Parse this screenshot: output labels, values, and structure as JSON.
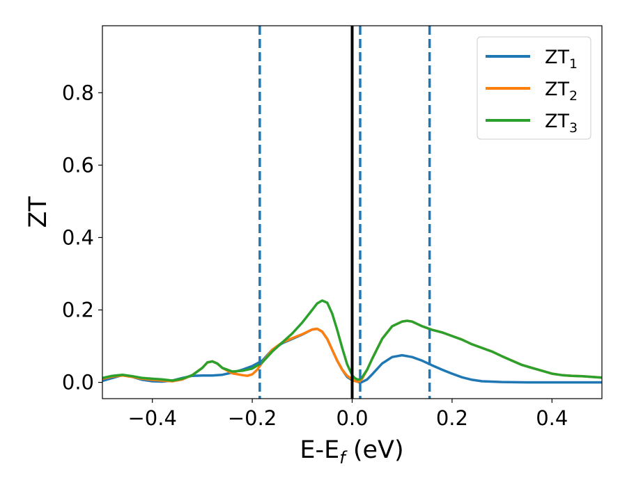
{
  "chart_data": {
    "type": "line",
    "title": "",
    "xlabel_main": "E-E",
    "xlabel_sub": "f",
    "xlabel_tail": " (eV)",
    "ylabel": "ZT",
    "xlim": [
      -0.5,
      0.5
    ],
    "ylim": [
      -0.045,
      0.985
    ],
    "xticks": [
      -0.4,
      -0.2,
      0.0,
      0.2,
      0.4
    ],
    "xtick_labels": [
      "−0.4",
      "−0.2",
      "0.0",
      "0.2",
      "0.4"
    ],
    "yticks": [
      0.0,
      0.2,
      0.4,
      0.6,
      0.8
    ],
    "ytick_labels": [
      "0.0",
      "0.2",
      "0.4",
      "0.6",
      "0.8"
    ],
    "grid": false,
    "legend_position": "top-right",
    "vlines": [
      {
        "x": -0.185,
        "style": "dashed",
        "color": "#1f77b4"
      },
      {
        "x": 0.0,
        "style": "solid",
        "color": "#000000"
      },
      {
        "x": 0.016,
        "style": "dashed",
        "color": "#1f77b4"
      },
      {
        "x": 0.155,
        "style": "dashed",
        "color": "#1f77b4"
      }
    ],
    "series": [
      {
        "name_main": "ZT",
        "name_sub": "1",
        "color": "#1f77b4",
        "points": [
          [
            -0.5,
            0.004
          ],
          [
            -0.48,
            0.012
          ],
          [
            -0.46,
            0.02
          ],
          [
            -0.44,
            0.015
          ],
          [
            -0.42,
            0.007
          ],
          [
            -0.4,
            0.003
          ],
          [
            -0.38,
            0.002
          ],
          [
            -0.36,
            0.005
          ],
          [
            -0.34,
            0.012
          ],
          [
            -0.32,
            0.018
          ],
          [
            -0.3,
            0.019
          ],
          [
            -0.28,
            0.019
          ],
          [
            -0.26,
            0.021
          ],
          [
            -0.24,
            0.027
          ],
          [
            -0.22,
            0.035
          ],
          [
            -0.2,
            0.045
          ],
          [
            -0.18,
            0.06
          ],
          [
            -0.16,
            0.09
          ],
          [
            -0.14,
            0.108
          ],
          [
            -0.12,
            0.12
          ],
          [
            -0.1,
            0.132
          ],
          [
            -0.08,
            0.146
          ],
          [
            -0.07,
            0.148
          ],
          [
            -0.06,
            0.14
          ],
          [
            -0.05,
            0.12
          ],
          [
            -0.04,
            0.09
          ],
          [
            -0.03,
            0.06
          ],
          [
            -0.02,
            0.035
          ],
          [
            -0.01,
            0.015
          ],
          [
            0.0,
            0.006
          ],
          [
            0.01,
            0.002
          ],
          [
            0.015,
            0.0
          ],
          [
            0.02,
            0.001
          ],
          [
            0.03,
            0.008
          ],
          [
            0.04,
            0.022
          ],
          [
            0.06,
            0.052
          ],
          [
            0.08,
            0.07
          ],
          [
            0.1,
            0.075
          ],
          [
            0.12,
            0.07
          ],
          [
            0.14,
            0.06
          ],
          [
            0.16,
            0.047
          ],
          [
            0.18,
            0.035
          ],
          [
            0.2,
            0.024
          ],
          [
            0.22,
            0.014
          ],
          [
            0.24,
            0.007
          ],
          [
            0.26,
            0.003
          ],
          [
            0.3,
            0.001
          ],
          [
            0.35,
            0.0
          ],
          [
            0.4,
            0.0
          ],
          [
            0.45,
            0.0
          ],
          [
            0.5,
            0.0
          ]
        ]
      },
      {
        "name_main": "ZT",
        "name_sub": "2",
        "color": "#ff7f0e",
        "points": [
          [
            -0.5,
            0.01
          ],
          [
            -0.48,
            0.016
          ],
          [
            -0.46,
            0.019
          ],
          [
            -0.44,
            0.015
          ],
          [
            -0.42,
            0.01
          ],
          [
            -0.4,
            0.007
          ],
          [
            -0.38,
            0.005
          ],
          [
            -0.36,
            0.003
          ],
          [
            -0.34,
            0.008
          ],
          [
            -0.32,
            0.02
          ],
          [
            -0.3,
            0.04
          ],
          [
            -0.29,
            0.055
          ],
          [
            -0.28,
            0.058
          ],
          [
            -0.27,
            0.052
          ],
          [
            -0.26,
            0.04
          ],
          [
            -0.24,
            0.025
          ],
          [
            -0.22,
            0.02
          ],
          [
            -0.21,
            0.018
          ],
          [
            -0.2,
            0.022
          ],
          [
            -0.19,
            0.035
          ],
          [
            -0.18,
            0.055
          ],
          [
            -0.16,
            0.09
          ],
          [
            -0.14,
            0.11
          ],
          [
            -0.12,
            0.122
          ],
          [
            -0.1,
            0.133
          ],
          [
            -0.08,
            0.146
          ],
          [
            -0.07,
            0.148
          ],
          [
            -0.06,
            0.14
          ],
          [
            -0.05,
            0.12
          ],
          [
            -0.04,
            0.09
          ],
          [
            -0.03,
            0.06
          ],
          [
            -0.02,
            0.035
          ],
          [
            -0.01,
            0.018
          ],
          [
            0.0,
            0.008
          ],
          [
            0.005,
            0.004
          ],
          [
            0.01,
            0.002
          ],
          [
            0.015,
            0.003
          ],
          [
            0.02,
            0.01
          ],
          [
            0.03,
            0.035
          ],
          [
            0.04,
            0.065
          ],
          [
            0.06,
            0.12
          ],
          [
            0.08,
            0.155
          ],
          [
            0.1,
            0.168
          ],
          [
            0.11,
            0.17
          ],
          [
            0.12,
            0.168
          ],
          [
            0.14,
            0.155
          ],
          [
            0.16,
            0.145
          ],
          [
            0.18,
            0.138
          ],
          [
            0.2,
            0.128
          ],
          [
            0.22,
            0.118
          ],
          [
            0.24,
            0.105
          ],
          [
            0.26,
            0.095
          ],
          [
            0.28,
            0.085
          ],
          [
            0.3,
            0.072
          ],
          [
            0.32,
            0.06
          ],
          [
            0.34,
            0.048
          ],
          [
            0.36,
            0.04
          ],
          [
            0.38,
            0.032
          ],
          [
            0.4,
            0.024
          ],
          [
            0.42,
            0.02
          ],
          [
            0.44,
            0.018
          ],
          [
            0.46,
            0.017
          ],
          [
            0.48,
            0.015
          ],
          [
            0.5,
            0.013
          ]
        ]
      },
      {
        "name_main": "ZT",
        "name_sub": "3",
        "color": "#2ca02c",
        "points": [
          [
            -0.5,
            0.012
          ],
          [
            -0.48,
            0.018
          ],
          [
            -0.46,
            0.021
          ],
          [
            -0.44,
            0.017
          ],
          [
            -0.42,
            0.012
          ],
          [
            -0.4,
            0.01
          ],
          [
            -0.38,
            0.008
          ],
          [
            -0.36,
            0.005
          ],
          [
            -0.34,
            0.01
          ],
          [
            -0.32,
            0.02
          ],
          [
            -0.3,
            0.04
          ],
          [
            -0.29,
            0.055
          ],
          [
            -0.28,
            0.058
          ],
          [
            -0.27,
            0.052
          ],
          [
            -0.26,
            0.04
          ],
          [
            -0.24,
            0.03
          ],
          [
            -0.22,
            0.032
          ],
          [
            -0.2,
            0.038
          ],
          [
            -0.18,
            0.055
          ],
          [
            -0.16,
            0.085
          ],
          [
            -0.14,
            0.11
          ],
          [
            -0.12,
            0.135
          ],
          [
            -0.1,
            0.165
          ],
          [
            -0.08,
            0.2
          ],
          [
            -0.07,
            0.218
          ],
          [
            -0.06,
            0.226
          ],
          [
            -0.05,
            0.22
          ],
          [
            -0.04,
            0.19
          ],
          [
            -0.03,
            0.145
          ],
          [
            -0.02,
            0.095
          ],
          [
            -0.01,
            0.05
          ],
          [
            0.0,
            0.02
          ],
          [
            0.005,
            0.012
          ],
          [
            0.01,
            0.008
          ],
          [
            0.015,
            0.008
          ],
          [
            0.02,
            0.014
          ],
          [
            0.03,
            0.035
          ],
          [
            0.04,
            0.065
          ],
          [
            0.06,
            0.12
          ],
          [
            0.08,
            0.155
          ],
          [
            0.1,
            0.168
          ],
          [
            0.11,
            0.17
          ],
          [
            0.12,
            0.168
          ],
          [
            0.14,
            0.155
          ],
          [
            0.16,
            0.145
          ],
          [
            0.18,
            0.138
          ],
          [
            0.2,
            0.128
          ],
          [
            0.22,
            0.118
          ],
          [
            0.24,
            0.105
          ],
          [
            0.26,
            0.095
          ],
          [
            0.28,
            0.085
          ],
          [
            0.3,
            0.072
          ],
          [
            0.32,
            0.06
          ],
          [
            0.34,
            0.048
          ],
          [
            0.36,
            0.04
          ],
          [
            0.38,
            0.032
          ],
          [
            0.4,
            0.024
          ],
          [
            0.42,
            0.02
          ],
          [
            0.44,
            0.018
          ],
          [
            0.46,
            0.017
          ],
          [
            0.48,
            0.015
          ],
          [
            0.5,
            0.013
          ]
        ]
      }
    ]
  }
}
